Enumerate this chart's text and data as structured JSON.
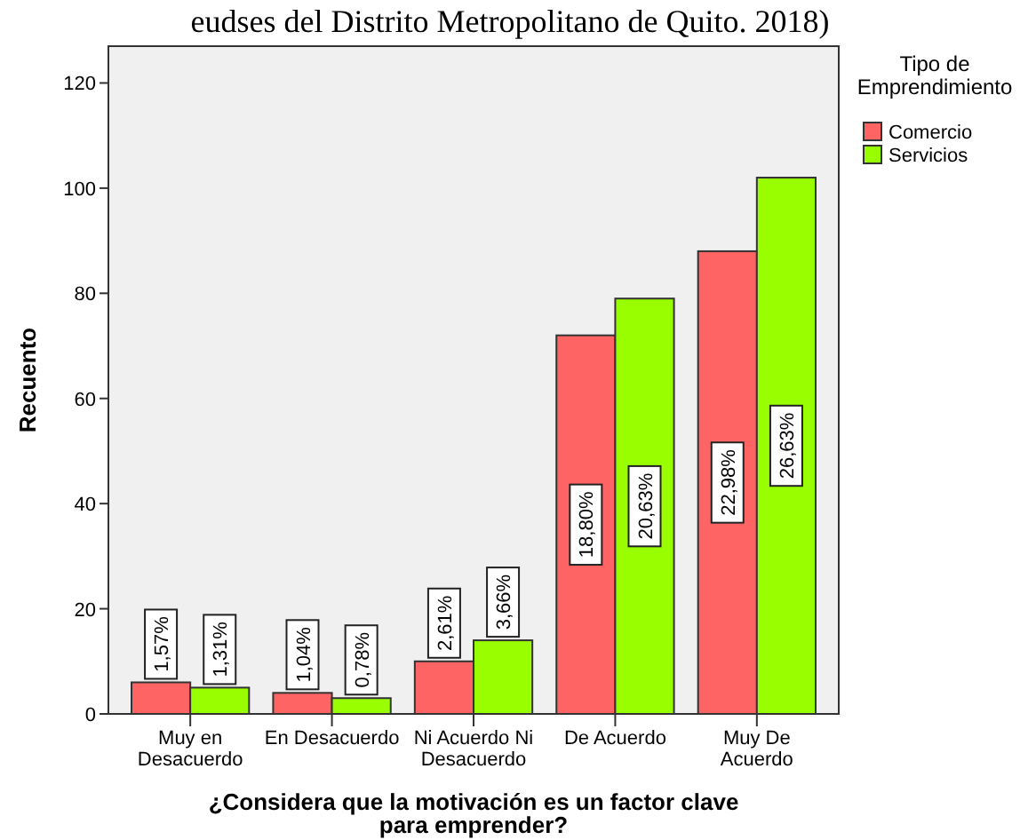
{
  "chart_data": {
    "type": "bar",
    "title": "eudses del Distrito Metropolitano de Quito. 2018)",
    "xlabel": "¿Considera que la motivación es un factor clave para emprender?",
    "ylabel": "Recuento",
    "legend_title": "Tipo de Emprendimiento",
    "legend": "top right",
    "grid": false,
    "categories": [
      "Muy en Desacuerdo",
      "En Desacuerdo",
      "Ni Acuerdo Ni Desacuerdo",
      "De Acuerdo",
      "Muy De Acuerdo"
    ],
    "series": [
      {
        "name": "Comercio",
        "color": "#ff6464",
        "values": [
          6,
          4,
          10,
          72,
          88
        ]
      },
      {
        "name": "Servicios",
        "color": "#99ff00",
        "values": [
          5,
          3,
          14,
          79,
          102
        ]
      }
    ],
    "annotations": [
      "1,57%",
      "1,31%",
      "1,04%",
      "0,78%",
      "2,61%",
      "3,66%",
      "18,80%",
      "20,63%",
      "22,98%",
      "26,63%"
    ],
    "ylim": [
      0,
      127
    ],
    "yticks": [
      0,
      20,
      40,
      60,
      80,
      100,
      120
    ]
  }
}
